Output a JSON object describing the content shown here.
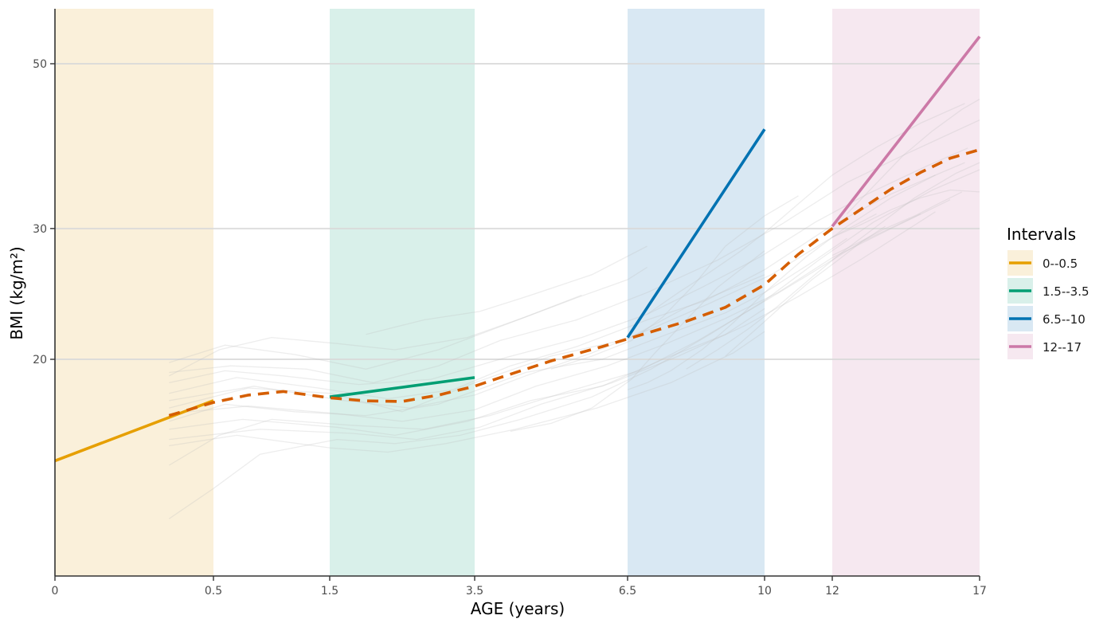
{
  "chart_data": {
    "type": "line",
    "title": "",
    "xlabel": "AGE (years)",
    "ylabel": "BMI (kg/m²)",
    "xlim": [
      0,
      17
    ],
    "ylim": [
      10.2,
      56
    ],
    "y_scale": "log",
    "x_scale": "piecewise",
    "x_ticks": [
      0,
      0.5,
      1.5,
      3.5,
      6.5,
      10,
      12,
      17
    ],
    "x_tick_labels": [
      "0",
      "0.5",
      "1.5",
      "3.5",
      "6.5",
      "10",
      "12",
      "17"
    ],
    "y_ticks": [
      20,
      30,
      50
    ],
    "y_tick_labels": [
      "20",
      "30",
      "50"
    ],
    "grid": "horizontal major",
    "legend": {
      "title": "Intervals",
      "position": "right",
      "entries": [
        "0--0.5",
        "1.5--3.5",
        "6.5--10",
        "12--17"
      ]
    },
    "intervals": [
      {
        "label": "0--0.5",
        "start": 0,
        "end": 0.5,
        "color": "#E69F00",
        "fill": "#FAF0DA"
      },
      {
        "label": "1.5--3.5",
        "start": 1.5,
        "end": 3.5,
        "color": "#009E73",
        "fill": "#D9F0EA"
      },
      {
        "label": "6.5--10",
        "start": 6.5,
        "end": 10,
        "color": "#0072B2",
        "fill": "#D9E8F3"
      },
      {
        "label": "12--17",
        "start": 12,
        "end": 17,
        "color": "#CC79A7",
        "fill": "#F6E8F0"
      }
    ],
    "series": [
      {
        "name": "0--0.5",
        "color": "#E69F00",
        "style": "solid",
        "x": [
          0,
          0.5
        ],
        "y": [
          14.6,
          17.6
        ]
      },
      {
        "name": "1.5--3.5",
        "color": "#009E73",
        "style": "solid",
        "x": [
          1.5,
          3.5
        ],
        "y": [
          17.8,
          18.9
        ]
      },
      {
        "name": "6.5--10",
        "color": "#0072B2",
        "style": "solid",
        "x": [
          6.5,
          10
        ],
        "y": [
          21.4,
          40.8
        ]
      },
      {
        "name": "12--17",
        "color": "#CC79A7",
        "style": "solid",
        "x": [
          12,
          17
        ],
        "y": [
          30.2,
          54.4
        ]
      },
      {
        "name": "",
        "color": "#D55E00",
        "style": "dashed",
        "x": [
          0.36,
          0.5,
          0.8,
          1.1,
          1.5,
          2.0,
          2.5,
          3.0,
          3.5,
          4.0,
          5.0,
          6.0,
          7.0,
          8.0,
          9.0,
          10.0,
          11.0,
          12.0,
          13.0,
          14.0,
          15.0,
          16.0,
          17.0
        ],
        "y": [
          16.8,
          17.5,
          17.9,
          18.1,
          17.75,
          17.58,
          17.55,
          17.9,
          18.4,
          18.9,
          19.9,
          20.8,
          21.7,
          22.5,
          23.5,
          25.2,
          27.7,
          30.0,
          31.9,
          33.9,
          35.7,
          37.3,
          38.3
        ]
      }
    ],
    "background_trajectories": {
      "color": "#bfbfbf",
      "opacity": 0.28,
      "lines": [
        {
          "x": [
            0.36,
            0.8,
            1.5,
            2.5,
            3.5,
            5.0,
            6.5,
            8.0,
            10.0
          ],
          "y": [
            17.2,
            18.3,
            18.0,
            17.0,
            18.6,
            20.2,
            21.3,
            23.5,
            26.0
          ]
        },
        {
          "x": [
            0.36,
            0.6,
            1.2,
            2.0,
            3.0,
            4.5,
            6.0,
            7.5,
            9.0,
            10.0,
            11.5,
            12.5
          ],
          "y": [
            16.5,
            17.4,
            17.0,
            16.8,
            17.4,
            19.2,
            20.0,
            21.6,
            23.1,
            24.6,
            27.2,
            29.1
          ]
        },
        {
          "x": [
            0.36,
            0.7,
            1.4,
            2.3,
            3.2,
            4.2,
            5.5,
            7.0,
            8.5,
            10.0,
            12.0,
            14.0,
            16.5
          ],
          "y": [
            18.0,
            18.9,
            18.3,
            17.7,
            18.2,
            19.6,
            20.8,
            22.6,
            24.0,
            26.4,
            30.3,
            33.4,
            36.8
          ]
        },
        {
          "x": [
            0.36,
            0.9,
            1.8,
            2.7,
            3.6,
            4.8,
            6.2,
            7.8,
            9.5,
            11.0,
            13.0,
            15.5
          ],
          "y": [
            15.6,
            16.1,
            15.9,
            15.6,
            16.2,
            17.4,
            18.6,
            20.2,
            22.2,
            24.3,
            27.3,
            31.6
          ]
        },
        {
          "x": [
            0.36,
            0.65,
            1.3,
            2.1,
            3.0,
            4.0,
            5.5,
            7.0,
            8.8,
            10.5,
            12.5,
            14.5,
            17.0
          ],
          "y": [
            19.2,
            19.6,
            19.4,
            18.6,
            19.6,
            21.2,
            22.6,
            24.6,
            27.2,
            30.4,
            34.6,
            37.8,
            42.0
          ]
        },
        {
          "x": [
            0.36,
            0.75,
            1.6,
            2.4,
            3.4,
            4.6,
            6.0,
            7.4,
            9.0,
            10.0
          ],
          "y": [
            16.1,
            16.6,
            16.2,
            15.8,
            16.5,
            17.6,
            18.4,
            20.0,
            21.6,
            23.4
          ]
        },
        {
          "x": [
            0.36,
            0.55,
            1.0,
            1.8,
            2.8,
            3.8,
            5.2,
            6.8,
            8.3,
            9.8,
            11.3,
            13.0,
            15.0
          ],
          "y": [
            14.4,
            15.8,
            16.6,
            16.3,
            16.1,
            16.8,
            18.0,
            19.3,
            21.2,
            23.6,
            26.0,
            28.8,
            31.4
          ]
        },
        {
          "x": [
            0.36,
            0.85,
            1.7,
            2.6,
            3.5,
            4.5,
            5.8,
            7.2,
            8.6,
            10.2,
            12.0,
            13.5
          ],
          "y": [
            17.6,
            18.4,
            17.6,
            17.2,
            17.9,
            19.0,
            20.4,
            22.1,
            23.8,
            26.0,
            29.2,
            31.4
          ]
        },
        {
          "x": [
            0.36,
            0.6,
            1.1,
            1.9,
            2.9,
            4.1,
            5.6,
            7.0,
            8.4,
            9.9,
            11.5,
            13.2,
            15.2,
            16.6
          ],
          "y": [
            18.6,
            19.3,
            19.0,
            18.5,
            18.8,
            20.1,
            21.4,
            23.0,
            25.0,
            27.5,
            30.6,
            33.4,
            36.4,
            38.5
          ]
        },
        {
          "x": [
            0.36,
            0.7,
            1.5,
            2.3,
            3.1,
            4.3,
            5.9,
            7.6,
            9.2,
            10.0
          ],
          "y": [
            15.3,
            15.8,
            15.2,
            15.0,
            15.4,
            16.1,
            17.2,
            18.6,
            20.4,
            21.8
          ]
        },
        {
          "x": [
            0.36,
            0.8,
            1.6,
            2.5,
            3.5,
            4.7,
            6.1,
            7.5,
            9.0,
            10.4,
            12.0,
            14.0,
            16.0
          ],
          "y": [
            16.9,
            17.3,
            16.9,
            16.5,
            17.1,
            18.4,
            19.6,
            21.0,
            22.7,
            24.6,
            27.4,
            30.0,
            32.8
          ]
        },
        {
          "x": [
            0.36,
            0.5,
            0.9,
            1.6,
            2.4,
            3.3,
            4.4,
            5.8,
            7.1,
            8.6,
            10.0,
            11.6,
            13.4,
            15.4,
            17.0
          ],
          "y": [
            12.2,
            13.4,
            14.9,
            15.6,
            15.4,
            15.8,
            16.6,
            17.8,
            19.4,
            21.6,
            24.0,
            27.2,
            30.6,
            33.8,
            36.0
          ]
        },
        {
          "x": [
            0.36,
            0.6,
            1.2,
            2.0,
            3.0,
            4.2,
            5.6
          ],
          "y": [
            19.8,
            20.9,
            20.3,
            19.4,
            20.6,
            22.4,
            24.4
          ]
        },
        {
          "x": [
            2.0,
            2.8,
            3.6,
            4.6,
            5.8,
            7.0
          ],
          "y": [
            21.6,
            22.6,
            23.2,
            24.4,
            26.0,
            28.4
          ]
        },
        {
          "x": [
            0.36,
            0.55,
            1.0,
            1.6,
            2.4,
            3.4,
            4.5,
            5.5,
            6.5,
            7.0
          ],
          "y": [
            19.0,
            20.6,
            21.4,
            21.0,
            20.6,
            21.4,
            22.8,
            24.2,
            25.6,
            26.6
          ]
        },
        {
          "x": [
            4.2,
            5.0,
            5.8,
            6.6,
            7.2,
            8.0,
            8.8,
            10.0
          ],
          "y": [
            16.0,
            16.4,
            17.2,
            18.8,
            20.4,
            22.6,
            25.0,
            28.0
          ]
        },
        {
          "x": [
            5.0,
            5.8,
            6.6,
            7.4,
            8.2,
            9.0,
            10.0,
            11.0
          ],
          "y": [
            19.4,
            20.2,
            21.2,
            22.8,
            25.2,
            28.4,
            31.2,
            33.2
          ]
        },
        {
          "x": [
            6.5,
            7.0,
            7.6,
            8.4,
            9.2,
            10.0,
            11.2,
            12.5,
            14.0,
            15.5
          ],
          "y": [
            18.2,
            18.6,
            19.3,
            20.6,
            22.4,
            24.6,
            27.4,
            30.2,
            33.0,
            35.4
          ]
        },
        {
          "x": [
            7.0,
            7.8,
            8.6,
            9.4,
            10.0,
            11.0,
            12.0,
            13.5,
            15.0,
            16.5
          ],
          "y": [
            23.0,
            24.6,
            26.2,
            28.0,
            29.6,
            32.4,
            35.4,
            38.6,
            41.6,
            44.2
          ]
        },
        {
          "x": [
            8.0,
            8.8,
            9.6,
            10.4,
            11.4,
            12.4,
            13.6,
            14.8,
            16.2,
            17.0
          ],
          "y": [
            19.4,
            20.6,
            22.0,
            23.6,
            25.8,
            28.0,
            30.4,
            33.0,
            35.6,
            36.8
          ]
        },
        {
          "x": [
            12.0,
            13.0,
            14.0,
            15.0,
            16.0,
            17.0
          ],
          "y": [
            29.2,
            30.4,
            31.8,
            33.0,
            33.8,
            33.6
          ]
        },
        {
          "x": [
            12.0,
            12.8,
            13.8,
            14.8,
            15.6,
            16.4
          ],
          "y": [
            27.6,
            28.6,
            30.0,
            31.2,
            32.4,
            33.6
          ]
        },
        {
          "x": [
            12.5,
            13.4,
            14.4,
            15.4,
            16.4,
            17.0
          ],
          "y": [
            31.4,
            34.2,
            37.6,
            40.6,
            43.4,
            44.8
          ]
        },
        {
          "x": [
            9.0,
            9.8,
            10.6,
            11.4,
            12.2,
            13.0,
            13.8
          ],
          "y": [
            20.2,
            22.0,
            23.8,
            25.6,
            27.2,
            28.8,
            30.2
          ]
        }
      ]
    }
  }
}
